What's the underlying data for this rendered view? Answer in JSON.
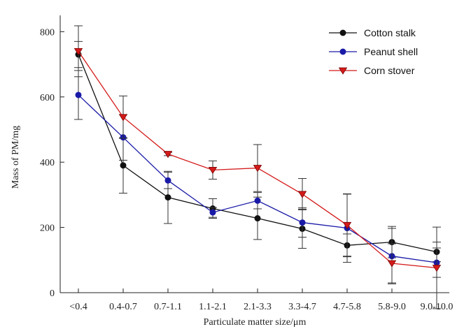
{
  "chart_data": {
    "type": "line",
    "xlabel": "Particulate matter size/μm",
    "ylabel": "Mass of PM/mg",
    "categories": [
      "<0.4",
      "0.4-0.7",
      "0.7-1.1",
      "1.1-2.1",
      "2.1-3.3",
      "3.3-4.7",
      "4.7-5.8",
      "5.8-9.0",
      "9.0-10.0"
    ],
    "ylim": [
      0,
      850
    ],
    "yticks": [
      0,
      200,
      400,
      600,
      800
    ],
    "grid": false,
    "legend_position": "top-right",
    "series": [
      {
        "name": "Cotton stalk",
        "color": "#111111",
        "marker": "circle",
        "values": [
          730,
          390,
          292,
          258,
          228,
          196,
          145,
          155,
          125
        ],
        "errors": [
          40,
          85,
          80,
          30,
          65,
          60,
          35,
          48,
          30
        ]
      },
      {
        "name": "Peanut shell",
        "color": "#1a1aa8",
        "marker": "circle",
        "values": [
          606,
          476,
          344,
          246,
          282,
          215,
          198,
          112,
          92
        ],
        "errors": [
          75,
          70,
          25,
          15,
          25,
          45,
          105,
          85,
          45
        ]
      },
      {
        "name": "Corn stover",
        "color": "#d41a1a",
        "marker": "triangle-down",
        "values": [
          740,
          538,
          425,
          376,
          382,
          302,
          207,
          90,
          76
        ],
        "errors": [
          78,
          65,
          5,
          28,
          72,
          48,
          95,
          60,
          125
        ]
      }
    ]
  }
}
